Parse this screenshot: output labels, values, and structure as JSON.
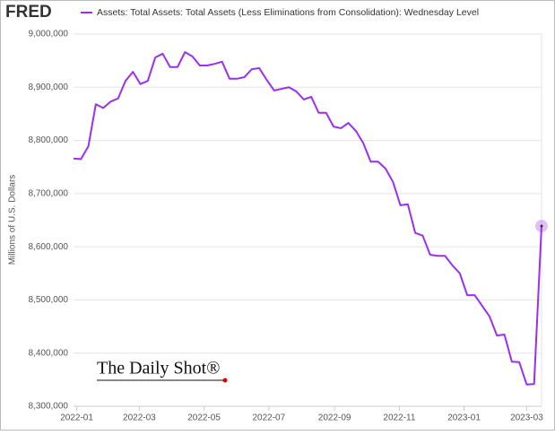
{
  "chart_data": {
    "type": "line",
    "logo": "FRED",
    "title": "Assets: Total Assets: Total Assets (Less Eliminations from Consolidation): Wednesday Level",
    "y_label": "Millions of U.S. Dollars",
    "watermark": "The Daily Shot®",
    "xlim": [
      0,
      63
    ],
    "xticks": [
      {
        "value": 0.43,
        "label": "2022-01"
      },
      {
        "value": 8.86,
        "label": "2022-03"
      },
      {
        "value": 17.57,
        "label": "2022-05"
      },
      {
        "value": 26.29,
        "label": "2022-07"
      },
      {
        "value": 35.14,
        "label": "2022-09"
      },
      {
        "value": 43.86,
        "label": "2022-11"
      },
      {
        "value": 52.57,
        "label": "2023-01"
      },
      {
        "value": 61.0,
        "label": "2023-03"
      }
    ],
    "ylim": [
      8300000,
      9000000
    ],
    "yticks": [
      {
        "value": 8300000,
        "label": "8,300,000"
      },
      {
        "value": 8400000,
        "label": "8,400,000"
      },
      {
        "value": 8500000,
        "label": "8,500,000"
      },
      {
        "value": 8600000,
        "label": "8,600,000"
      },
      {
        "value": 8700000,
        "label": "8,700,000"
      },
      {
        "value": 8800000,
        "label": "8,800,000"
      },
      {
        "value": 8900000,
        "label": "8,900,000"
      },
      {
        "value": 9000000,
        "label": "9,000,000"
      }
    ],
    "grid": true,
    "series": [
      {
        "name": "Assets: Total Assets: Total Assets (Less Eliminations from Consolidation): Wednesday Level",
        "color": "#9b2ff0",
        "values": [
          8766000,
          8765000,
          8789000,
          8868000,
          8861000,
          8873000,
          8879000,
          8912000,
          8929000,
          8906000,
          8912000,
          8956000,
          8963000,
          8938000,
          8938000,
          8966000,
          8958000,
          8941000,
          8941000,
          8944000,
          8948000,
          8916000,
          8916000,
          8919000,
          8934000,
          8936000,
          8914000,
          8894000,
          8897000,
          8900000,
          8892000,
          8877000,
          8882000,
          8852000,
          8852000,
          8826000,
          8823000,
          8833000,
          8818000,
          8795000,
          8760000,
          8760000,
          8747000,
          8722000,
          8678000,
          8680000,
          8626000,
          8621000,
          8585000,
          8583000,
          8583000,
          8565000,
          8550000,
          8509000,
          8509000,
          8489000,
          8469000,
          8433000,
          8435000,
          8384000,
          8383000,
          8341000,
          8342000,
          8639000
        ]
      }
    ]
  }
}
